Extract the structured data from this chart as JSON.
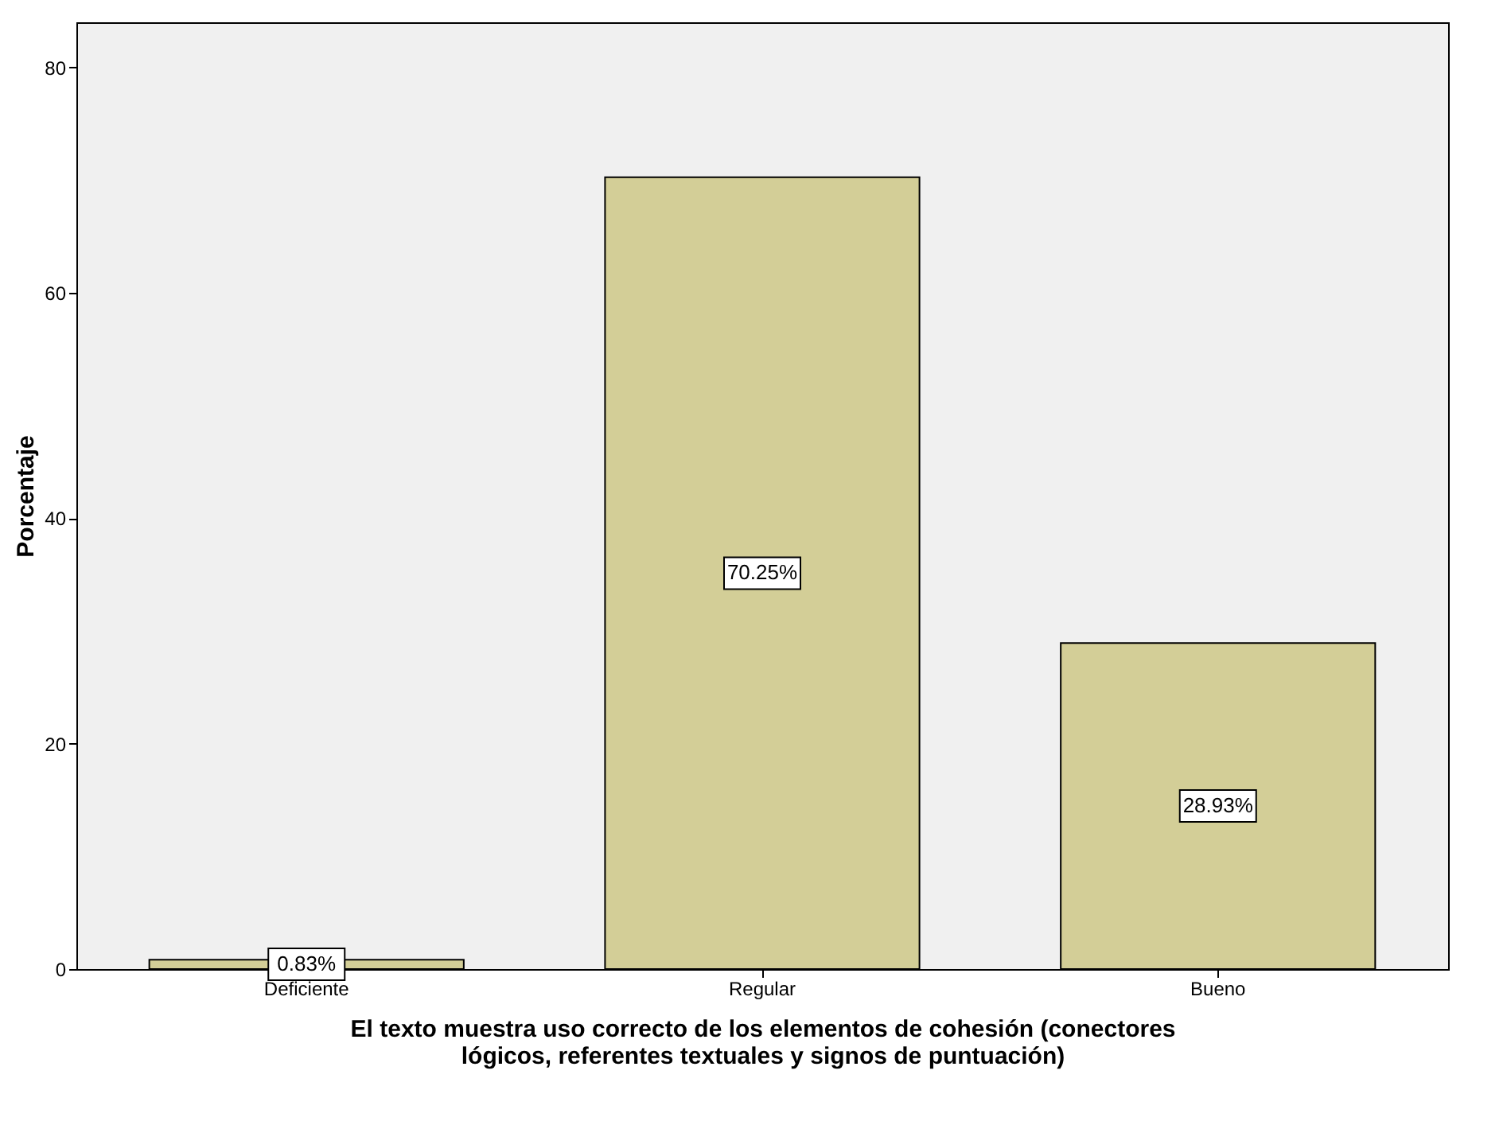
{
  "chart_data": {
    "type": "bar",
    "xlabel": "El texto muestra uso correcto de los elementos de cohesión (conectores lógicos, referentes textuales y signos de puntuación)",
    "ylabel": "Porcentaje",
    "categories": [
      "Deficiente",
      "Regular",
      "Bueno"
    ],
    "values": [
      0.83,
      70.25,
      28.93
    ],
    "value_labels": [
      "0.83%",
      "70.25%",
      "28.93%"
    ],
    "color": "#d3ce97",
    "ylim": [
      0,
      84
    ],
    "yticks": [
      0,
      20,
      40,
      60,
      80
    ],
    "grid": false
  }
}
